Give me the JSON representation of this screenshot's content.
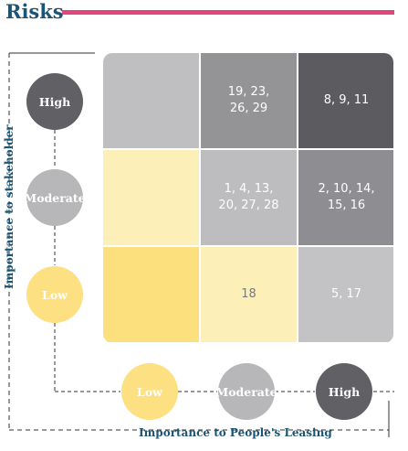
{
  "title": "Risks",
  "axes": {
    "y_label": "Importance to stakeholder",
    "x_label": "Importance to People's Leasing"
  },
  "y_levels": [
    "High",
    "Moderate",
    "Low"
  ],
  "x_levels": [
    "Low",
    "Moderate",
    "High"
  ],
  "matrix": [
    [
      {
        "text": "",
        "color": "#bfbfc1"
      },
      {
        "text": "19, 23,\n26, 29",
        "color": "#949497"
      },
      {
        "text": "8, 9, 11",
        "color": "#5b5b60"
      }
    ],
    [
      {
        "text": "",
        "color": "#fdefb8"
      },
      {
        "text": "1, 4, 13,\n20, 27, 28",
        "color": "#bdbdbf"
      },
      {
        "text": "2, 10, 14,\n15, 16",
        "color": "#8e8e92"
      }
    ],
    [
      {
        "text": "",
        "color": "#fde07e"
      },
      {
        "text": "18",
        "color": "#fdefb8"
      },
      {
        "text": "5, 17",
        "color": "#c3c3c5"
      }
    ]
  ],
  "colors": {
    "title": "#1b5474",
    "title_rule": "#e0457b",
    "high": "#606065",
    "moderate": "#b7b7b9",
    "low": "#fde082"
  }
}
